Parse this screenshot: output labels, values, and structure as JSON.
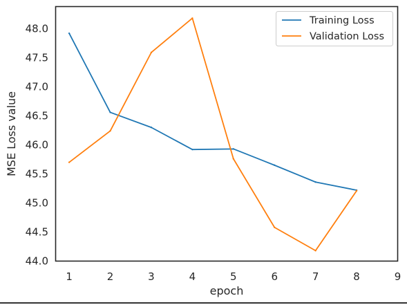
{
  "chart_data": {
    "type": "line",
    "title": "",
    "xlabel": "epoch",
    "ylabel": "MSE Loss value",
    "xlim": [
      0.67,
      9
    ],
    "ylim": [
      44.0,
      48.38
    ],
    "x_ticks": [
      1,
      2,
      3,
      4,
      5,
      6,
      7,
      8,
      9
    ],
    "y_ticks": [
      44.0,
      44.5,
      45.0,
      45.5,
      46.0,
      46.5,
      47.0,
      47.5,
      48.0
    ],
    "y_tick_labels": [
      "44.0",
      "44.5",
      "45.0",
      "45.5",
      "46.0",
      "46.5",
      "47.0",
      "47.5",
      "48.0"
    ],
    "grid": false,
    "legend_position": "top-right",
    "x": [
      1,
      2,
      3,
      4,
      5,
      6,
      7,
      8
    ],
    "series": [
      {
        "name": "Training Loss",
        "color": "#1f77b4",
        "values": [
          47.92,
          46.56,
          46.3,
          45.92,
          45.93,
          45.65,
          45.36,
          45.22
        ]
      },
      {
        "name": "Validation Loss",
        "color": "#ff7f0e",
        "values": [
          45.7,
          46.24,
          47.59,
          48.18,
          45.76,
          44.58,
          44.18,
          45.21
        ]
      }
    ]
  }
}
